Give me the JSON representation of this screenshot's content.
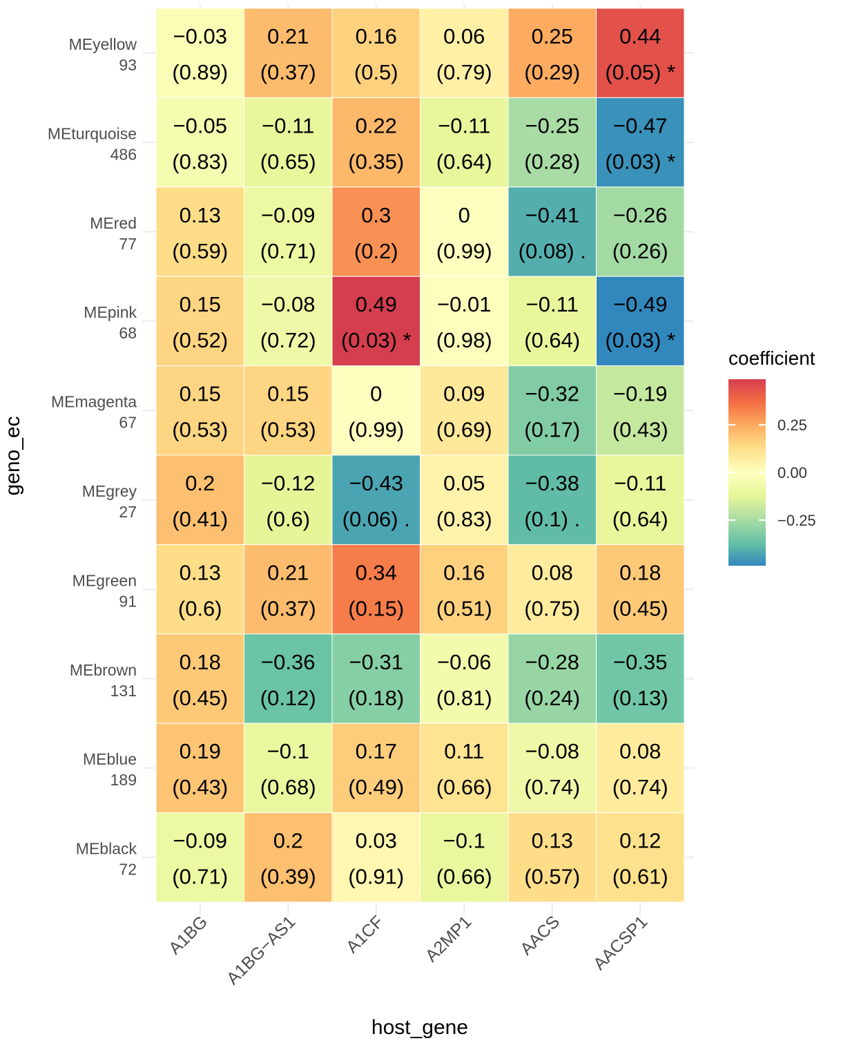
{
  "chart_data": {
    "type": "heatmap",
    "xlabel": "host_gene",
    "ylabel": "geno_ec",
    "x_categories": [
      "A1BG",
      "A1BG−AS1",
      "A1CF",
      "A2MP1",
      "AACS",
      "AACSP1"
    ],
    "y_categories": [
      {
        "name": "MEyellow",
        "count": "93"
      },
      {
        "name": "MEturquoise",
        "count": "486"
      },
      {
        "name": "MEred",
        "count": "77"
      },
      {
        "name": "MEpink",
        "count": "68"
      },
      {
        "name": "MEmagenta",
        "count": "67"
      },
      {
        "name": "MEgrey",
        "count": "27"
      },
      {
        "name": "MEgreen",
        "count": "91"
      },
      {
        "name": "MEbrown",
        "count": "131"
      },
      {
        "name": "MEblue",
        "count": "189"
      },
      {
        "name": "MEblack",
        "count": "72"
      }
    ],
    "values": [
      [
        -0.03,
        0.21,
        0.16,
        0.06,
        0.25,
        0.44
      ],
      [
        -0.05,
        -0.11,
        0.22,
        -0.11,
        -0.25,
        -0.47
      ],
      [
        0.13,
        -0.09,
        0.3,
        0,
        -0.41,
        -0.26
      ],
      [
        0.15,
        -0.08,
        0.49,
        -0.01,
        -0.11,
        -0.49
      ],
      [
        0.15,
        0.15,
        0,
        0.09,
        -0.32,
        -0.19
      ],
      [
        0.2,
        -0.12,
        -0.43,
        0.05,
        -0.38,
        -0.11
      ],
      [
        0.13,
        0.21,
        0.34,
        0.16,
        0.08,
        0.18
      ],
      [
        0.18,
        -0.36,
        -0.31,
        -0.06,
        -0.28,
        -0.35
      ],
      [
        0.19,
        -0.1,
        0.17,
        0.11,
        -0.08,
        0.08
      ],
      [
        -0.09,
        0.2,
        0.03,
        -0.1,
        0.13,
        0.12
      ]
    ],
    "cell_labels": [
      [
        [
          "−0.03",
          "(0.89)"
        ],
        [
          "0.21",
          "(0.37)"
        ],
        [
          "0.16",
          "(0.5)"
        ],
        [
          "0.06",
          "(0.79)"
        ],
        [
          "0.25",
          "(0.29)"
        ],
        [
          "0.44",
          "(0.05) *"
        ]
      ],
      [
        [
          "−0.05",
          "(0.83)"
        ],
        [
          "−0.11",
          "(0.65)"
        ],
        [
          "0.22",
          "(0.35)"
        ],
        [
          "−0.11",
          "(0.64)"
        ],
        [
          "−0.25",
          "(0.28)"
        ],
        [
          "−0.47",
          "(0.03) *"
        ]
      ],
      [
        [
          "0.13",
          "(0.59)"
        ],
        [
          "−0.09",
          "(0.71)"
        ],
        [
          "0.3",
          "(0.2)"
        ],
        [
          "0",
          "(0.99)"
        ],
        [
          "−0.41",
          "(0.08) ."
        ],
        [
          "−0.26",
          "(0.26)"
        ]
      ],
      [
        [
          "0.15",
          "(0.52)"
        ],
        [
          "−0.08",
          "(0.72)"
        ],
        [
          "0.49",
          "(0.03) *"
        ],
        [
          "−0.01",
          "(0.98)"
        ],
        [
          "−0.11",
          "(0.64)"
        ],
        [
          "−0.49",
          "(0.03) *"
        ]
      ],
      [
        [
          "0.15",
          "(0.53)"
        ],
        [
          "0.15",
          "(0.53)"
        ],
        [
          "0",
          "(0.99)"
        ],
        [
          "0.09",
          "(0.69)"
        ],
        [
          "−0.32",
          "(0.17)"
        ],
        [
          "−0.19",
          "(0.43)"
        ]
      ],
      [
        [
          "0.2",
          "(0.41)"
        ],
        [
          "−0.12",
          "(0.6)"
        ],
        [
          "−0.43",
          "(0.06) ."
        ],
        [
          "0.05",
          "(0.83)"
        ],
        [
          "−0.38",
          "(0.1) ."
        ],
        [
          "−0.11",
          "(0.64)"
        ]
      ],
      [
        [
          "0.13",
          "(0.6)"
        ],
        [
          "0.21",
          "(0.37)"
        ],
        [
          "0.34",
          "(0.15)"
        ],
        [
          "0.16",
          "(0.51)"
        ],
        [
          "0.08",
          "(0.75)"
        ],
        [
          "0.18",
          "(0.45)"
        ]
      ],
      [
        [
          "0.18",
          "(0.45)"
        ],
        [
          "−0.36",
          "(0.12)"
        ],
        [
          "−0.31",
          "(0.18)"
        ],
        [
          "−0.06",
          "(0.81)"
        ],
        [
          "−0.28",
          "(0.24)"
        ],
        [
          "−0.35",
          "(0.13)"
        ]
      ],
      [
        [
          "0.19",
          "(0.43)"
        ],
        [
          "−0.1",
          "(0.68)"
        ],
        [
          "0.17",
          "(0.49)"
        ],
        [
          "0.11",
          "(0.66)"
        ],
        [
          "−0.08",
          "(0.74)"
        ],
        [
          "0.08",
          "(0.74)"
        ]
      ],
      [
        [
          "−0.09",
          "(0.71)"
        ],
        [
          "0.2",
          "(0.39)"
        ],
        [
          "0.03",
          "(0.91)"
        ],
        [
          "−0.1",
          "(0.66)"
        ],
        [
          "0.13",
          "(0.57)"
        ],
        [
          "0.12",
          "(0.61)"
        ]
      ]
    ],
    "color_scale": {
      "palette": "Spectral",
      "domain": [
        -0.49,
        0.49
      ],
      "stops": [
        "#3288bd",
        "#66c2a5",
        "#abdda4",
        "#e6f598",
        "#ffffbf",
        "#fee08b",
        "#fdae61",
        "#f46d43",
        "#d53e4f"
      ],
      "legend_title": "coefficient",
      "legend_ticks": [
        0.25,
        0.0,
        -0.25
      ],
      "legend_tick_labels": [
        "0.25",
        "0.00",
        "−0.25"
      ],
      "legend_placement": "right"
    },
    "grid": true
  }
}
